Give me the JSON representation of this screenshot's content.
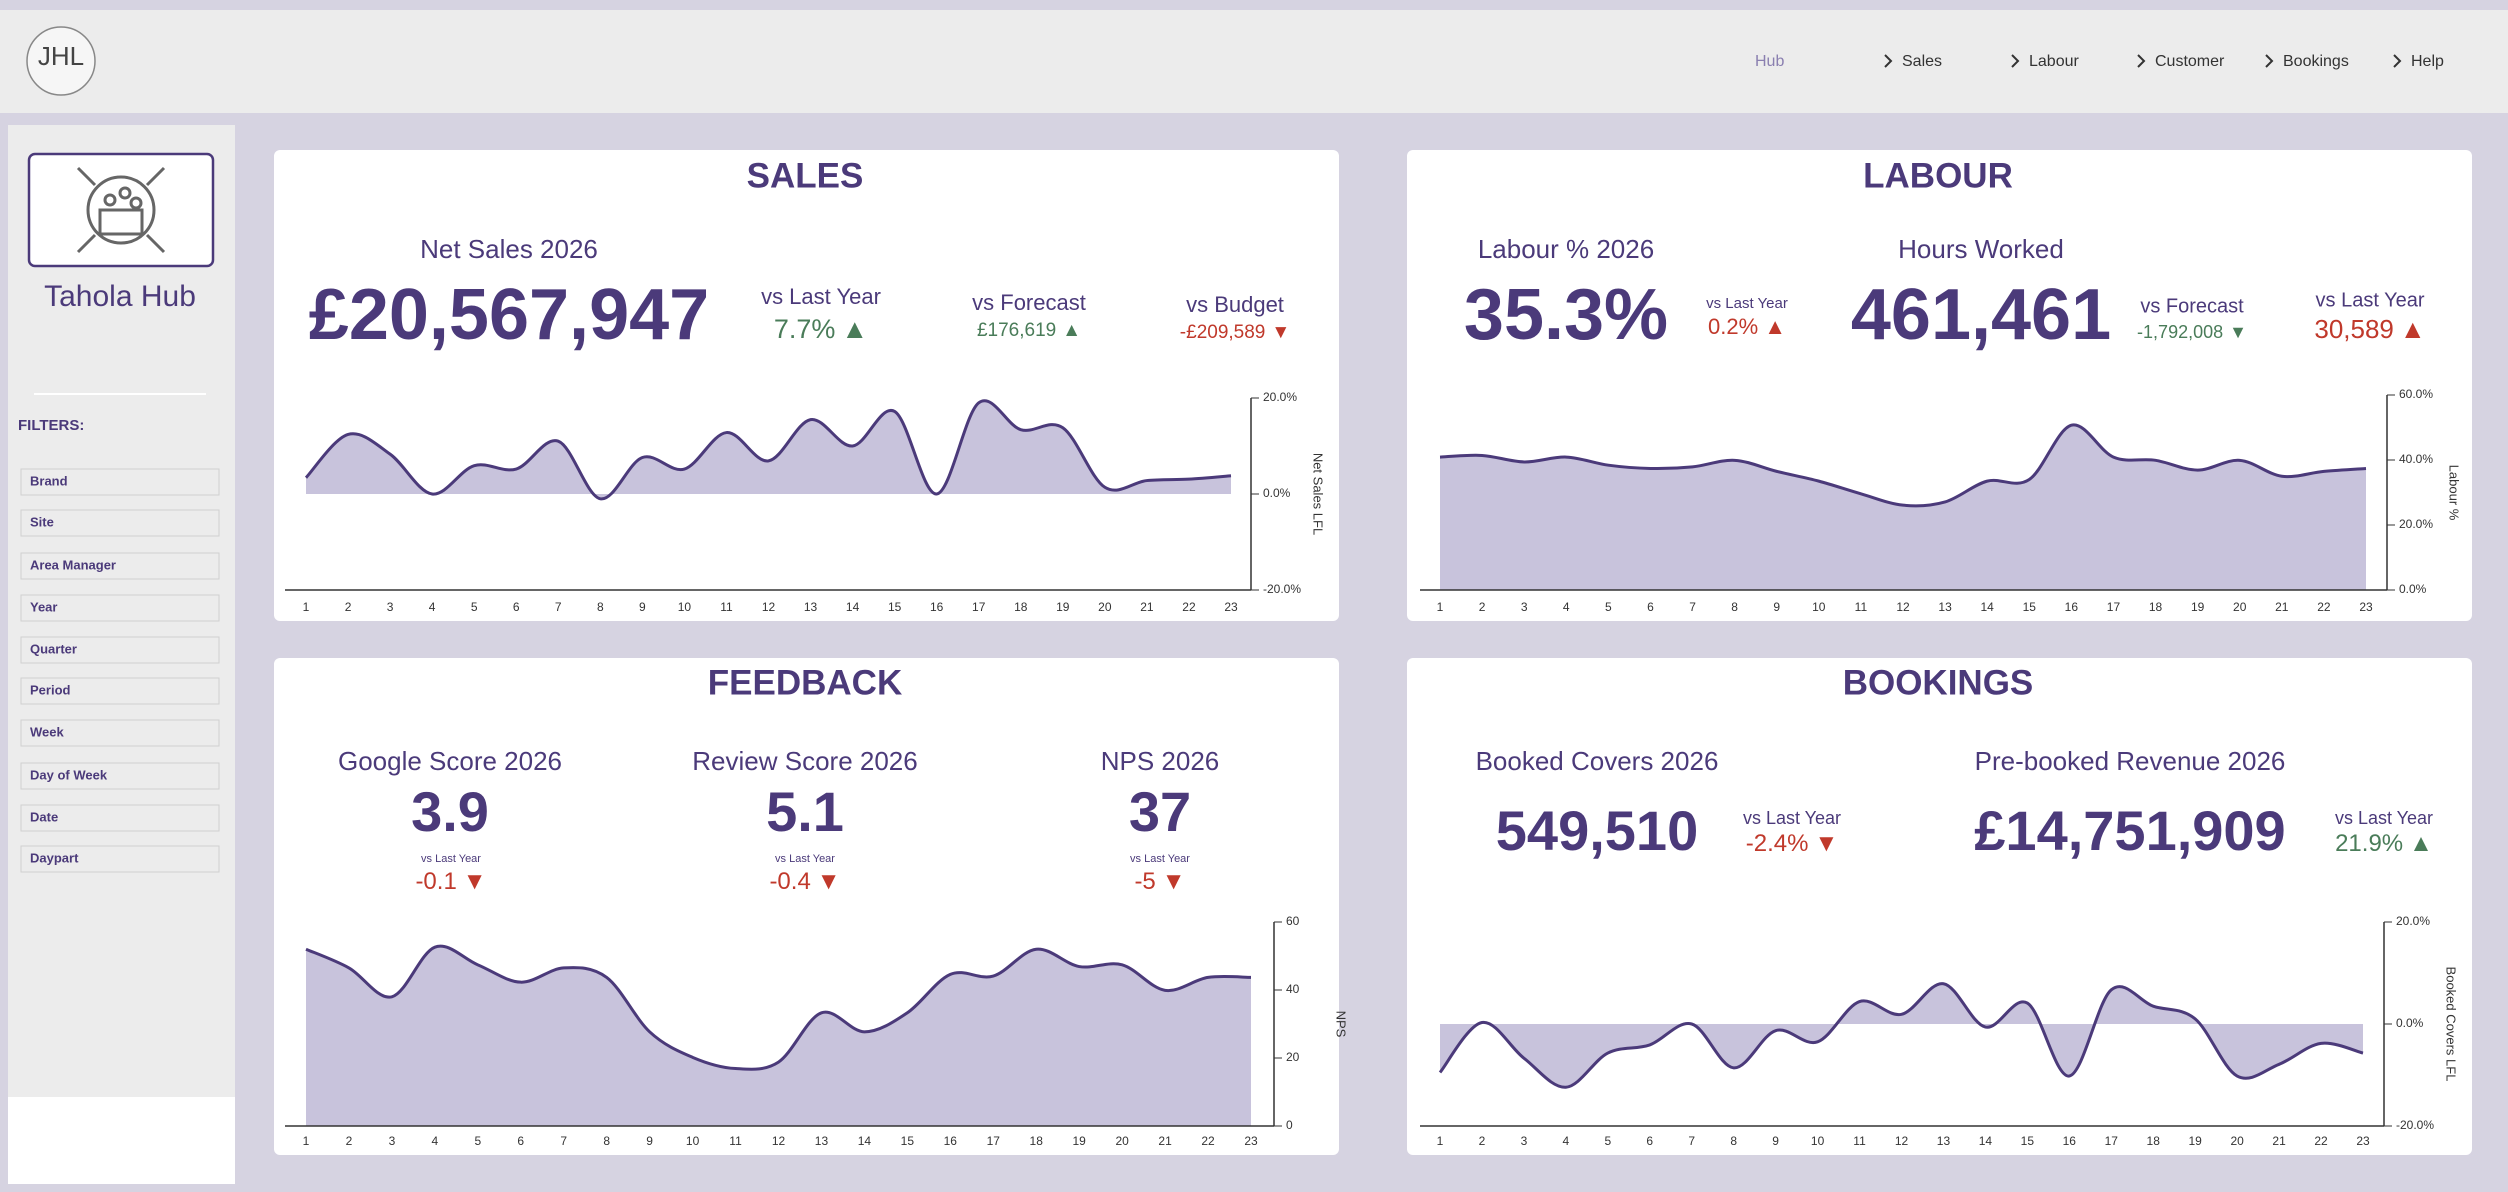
{
  "logo": {
    "text": "JHL"
  },
  "nav": {
    "items": [
      "Hub",
      "Sales",
      "Labour",
      "Customer",
      "Bookings",
      "Help"
    ]
  },
  "sidebar": {
    "title": "Tahola Hub",
    "filters_label": "FILTERS:",
    "filters": [
      "Brand",
      "Site",
      "Area Manager",
      "Year",
      "Quarter",
      "Period",
      "Week",
      "Day of Week",
      "Date",
      "Daypart"
    ]
  },
  "panels": [
    {
      "title": "SALES",
      "kpis": [
        {
          "label": "Net Sales 2026",
          "value": "£20,567,947"
        }
      ],
      "comparisons": [
        {
          "label": "vs Last Year",
          "change": "7.7%",
          "arrow": "▲",
          "color": "#4a7c59"
        },
        {
          "label": "vs Forecast",
          "change": "£176,619",
          "arrow": "▲",
          "color": "#4a7c59"
        },
        {
          "label": "vs Budget",
          "change": "-£209,589",
          "arrow": "▼",
          "color": "#c0392b"
        }
      ]
    },
    {
      "title": "LABOUR",
      "kpis": [
        {
          "label": "Labour % 2026",
          "value": "35.3%"
        },
        {
          "label": "Hours Worked",
          "value": "461,461"
        }
      ],
      "comparisons": [
        {
          "label": "vs Last Year",
          "change": "0.2%",
          "arrow": "▲",
          "color": "#c0392b"
        },
        {
          "label": "vs Forecast",
          "change": "-1,792,008",
          "arrow": "▼",
          "color": "#4a7c59"
        },
        {
          "label": "vs Last Year",
          "change": "30,589",
          "arrow": "▲",
          "color": "#c0392b"
        }
      ]
    },
    {
      "title": "FEEDBACK",
      "kpis": [
        {
          "label": "Google Score 2026",
          "value": "3.9"
        },
        {
          "label": "Review Score 2026",
          "value": "5.1"
        },
        {
          "label": "NPS 2026",
          "value": "37"
        }
      ],
      "comparisons": [
        {
          "label": "vs Last Year",
          "change": "-0.1",
          "arrow": "▼",
          "color": "#c0392b"
        },
        {
          "label": "vs Last Year",
          "change": "-0.4",
          "arrow": "▼",
          "color": "#c0392b"
        },
        {
          "label": "vs Last Year",
          "change": "-5",
          "arrow": "▼",
          "color": "#c0392b"
        }
      ]
    },
    {
      "title": "BOOKINGS",
      "kpis": [
        {
          "label": "Booked Covers 2026",
          "value": "549,510"
        },
        {
          "label": "Pre-booked Revenue 2026",
          "value": "£14,751,909"
        }
      ],
      "comparisons": [
        {
          "label": "vs Last Year",
          "change": "-2.4%",
          "arrow": "▼",
          "color": "#c0392b"
        },
        {
          "label": "vs Last Year",
          "change": "21.9%",
          "arrow": "▲",
          "color": "#4a7c59"
        }
      ]
    }
  ],
  "chart_data": [
    {
      "type": "area",
      "y_label": "Net Sales LFL",
      "color": "#c8c3dc",
      "line_color": "#4b3a7a",
      "categories": [
        "1",
        "2",
        "3",
        "4",
        "5",
        "6",
        "7",
        "8",
        "9",
        "10",
        "11",
        "12",
        "13",
        "14",
        "15",
        "16",
        "17",
        "18",
        "19",
        "20",
        "21",
        "22",
        "23"
      ],
      "values": [
        3.4,
        12.4,
        8.3,
        0,
        5.9,
        5.2,
        11,
        -1,
        7.6,
        5.2,
        12.8,
        6.9,
        15.5,
        10,
        17.2,
        0,
        19,
        13.4,
        13.8,
        1.4,
        2.8,
        3.1,
        3.8
      ],
      "ylim": [
        -20,
        20
      ],
      "yticks": [
        {
          "value": -20,
          "label": "-20.0%"
        },
        {
          "value": 0,
          "label": "0.0%"
        },
        {
          "value": 20,
          "label": "20.0%"
        }
      ]
    },
    {
      "type": "area",
      "y_label": "Labour %",
      "color": "#c8c3dc",
      "line_color": "#4b3a7a",
      "categories": [
        "1",
        "2",
        "3",
        "4",
        "5",
        "6",
        "7",
        "8",
        "9",
        "10",
        "11",
        "12",
        "13",
        "14",
        "15",
        "16",
        "17",
        "18",
        "19",
        "20",
        "21",
        "22",
        "23"
      ],
      "values": [
        40.9,
        41.4,
        39.4,
        40.9,
        38.4,
        37.4,
        37.9,
        39.9,
        36.5,
        33.5,
        29.6,
        26.1,
        27.1,
        33.5,
        34,
        50.7,
        40.9,
        39.9,
        36.9,
        39.9,
        35,
        36.5,
        37.4
      ],
      "ylim": [
        0,
        60
      ],
      "yticks": [
        {
          "value": 0,
          "label": "0.0%"
        },
        {
          "value": 20,
          "label": "20.0%"
        },
        {
          "value": 40,
          "label": "40.0%"
        },
        {
          "value": 60,
          "label": "60.0%"
        }
      ]
    },
    {
      "type": "area",
      "y_label": "NPS",
      "color": "#c8c3dc",
      "line_color": "#4b3a7a",
      "categories": [
        "1",
        "2",
        "3",
        "4",
        "5",
        "6",
        "7",
        "8",
        "9",
        "10",
        "11",
        "12",
        "13",
        "14",
        "15",
        "16",
        "17",
        "18",
        "19",
        "20",
        "21",
        "22",
        "23"
      ],
      "values": [
        52,
        46.5,
        38,
        52.6,
        47.4,
        42.3,
        46.5,
        43.7,
        27.7,
        20.2,
        16.9,
        18.8,
        33.3,
        27.7,
        33.3,
        44.6,
        44.1,
        52,
        46.9,
        47.4,
        39.9,
        43.7,
        43.7
      ],
      "ylim": [
        0,
        60
      ],
      "yticks": [
        0,
        20,
        40,
        60
      ]
    },
    {
      "type": "area",
      "y_label": "Booked Covers LFL",
      "color": "#c8c3dc",
      "line_color": "#4b3a7a",
      "categories": [
        "1",
        "2",
        "3",
        "4",
        "5",
        "6",
        "7",
        "8",
        "9",
        "10",
        "11",
        "12",
        "13",
        "14",
        "15",
        "16",
        "17",
        "18",
        "19",
        "20",
        "21",
        "22",
        "23"
      ],
      "values": [
        -9.5,
        0.3,
        -6.7,
        -12.4,
        -5.7,
        -4.1,
        0,
        -8.6,
        -1.3,
        -3.5,
        4.4,
        1.9,
        7.9,
        -0.6,
        4.1,
        -10.2,
        6.7,
        3.5,
        1,
        -10.2,
        -7.9,
        -3.8,
        -5.7
      ],
      "ylim": [
        -20,
        20
      ],
      "yticks": [
        {
          "value": -20,
          "label": "-20.0%"
        },
        {
          "value": 0,
          "label": "0.0%"
        },
        {
          "value": 20,
          "label": "20.0%"
        }
      ]
    }
  ]
}
